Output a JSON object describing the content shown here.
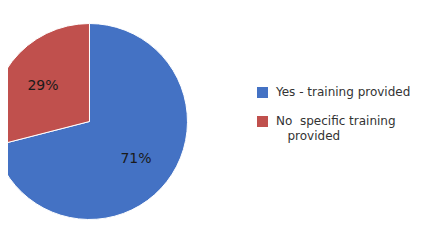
{
  "chart_data": {
    "type": "pie",
    "categories": [
      "Yes - training provided",
      "No  specific training\n   provided"
    ],
    "values": [
      71,
      29
    ],
    "value_labels": [
      "71%",
      "29%"
    ],
    "colors": [
      "#4472C4",
      "#C0504D"
    ],
    "data_labels": true,
    "legend": "right"
  }
}
